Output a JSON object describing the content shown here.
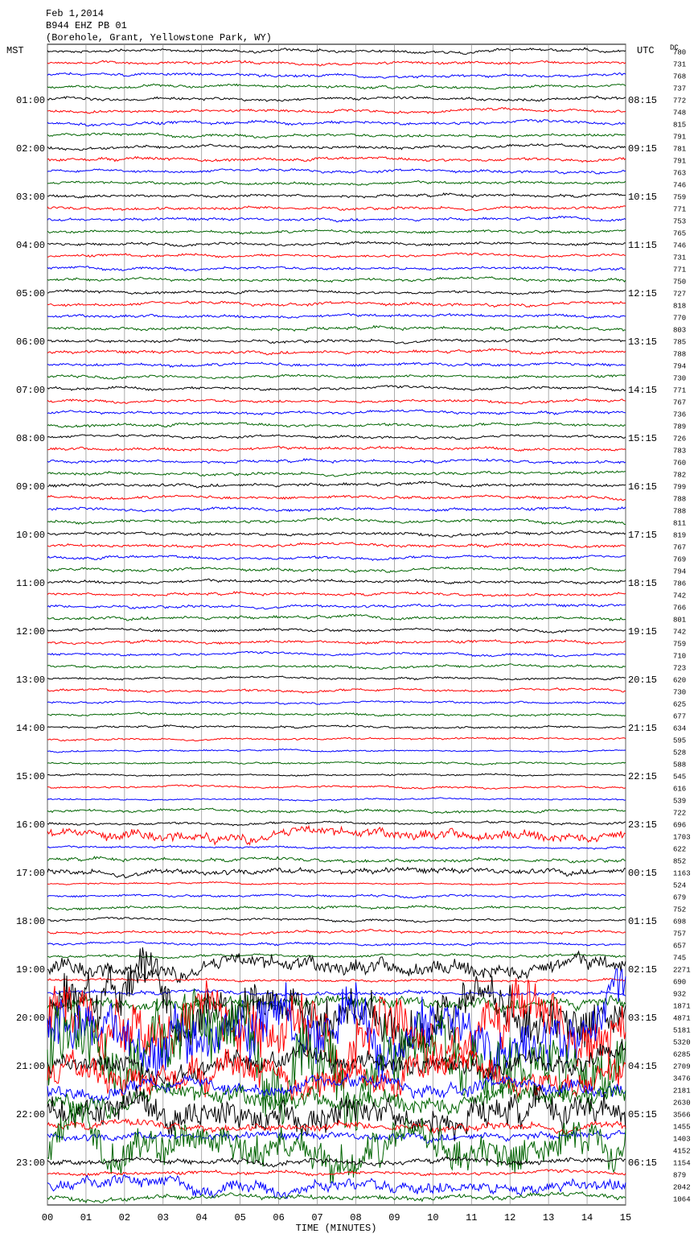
{
  "chart_data": {
    "type": "helicorder",
    "title_lines": [
      "Feb 1,2014",
      "B944 EHZ PB 01",
      "(Borehole, Grant, Yellowstone Park, WY)"
    ],
    "left_axis_title": "MST",
    "right_axis_title": "UTC",
    "dc_title": "DC",
    "x_label": "TIME (MINUTES)",
    "mst_labels": [
      "01:00",
      "02:00",
      "03:00",
      "04:00",
      "05:00",
      "06:00",
      "07:00",
      "08:00",
      "09:00",
      "10:00",
      "11:00",
      "12:00",
      "13:00",
      "14:00",
      "15:00",
      "16:00",
      "17:00",
      "18:00",
      "19:00",
      "20:00",
      "21:00",
      "22:00",
      "23:00"
    ],
    "utc_labels": [
      "08:15",
      "09:15",
      "10:15",
      "11:15",
      "12:15",
      "13:15",
      "14:15",
      "15:15",
      "16:15",
      "17:15",
      "18:15",
      "19:15",
      "20:15",
      "21:15",
      "22:15",
      "23:15",
      "00:15",
      "01:15",
      "02:15",
      "03:15",
      "04:15",
      "05:15",
      "06:15"
    ],
    "xlim": [
      0,
      15
    ],
    "xticks": [
      {
        "value": 0,
        "label": "00"
      },
      {
        "value": 1,
        "label": "01"
      },
      {
        "value": 2,
        "label": "02"
      },
      {
        "value": 3,
        "label": "03"
      },
      {
        "value": 4,
        "label": "04"
      },
      {
        "value": 5,
        "label": "05"
      },
      {
        "value": 6,
        "label": "06"
      },
      {
        "value": 7,
        "label": "07"
      },
      {
        "value": 8,
        "label": "08"
      },
      {
        "value": 9,
        "label": "09"
      },
      10,
      11,
      12,
      13,
      14,
      15
    ],
    "colors": [
      "#000000",
      "#ff0000",
      "#0000ff",
      "#006400"
    ],
    "dc_values": [
      780,
      731,
      768,
      737,
      772,
      748,
      815,
      791,
      781,
      791,
      763,
      746,
      759,
      771,
      753,
      765,
      746,
      731,
      771,
      750,
      727,
      818,
      770,
      803,
      785,
      788,
      794,
      730,
      771,
      767,
      736,
      789,
      726,
      783,
      760,
      782,
      799,
      788,
      788,
      811,
      819,
      767,
      769,
      794,
      786,
      742,
      766,
      801,
      742,
      759,
      710,
      723,
      620,
      730,
      625,
      677,
      634,
      595,
      528,
      588,
      545,
      616,
      539,
      722,
      696,
      1703,
      622,
      852,
      1163,
      524,
      679,
      752,
      698,
      757,
      657,
      745,
      2271,
      690,
      932,
      1871,
      4871,
      5181,
      5320,
      6285,
      2709,
      3476,
      2181,
      2630,
      3566,
      1455,
      1403,
      4152,
      1154,
      879,
      2042,
      1064
    ]
  }
}
